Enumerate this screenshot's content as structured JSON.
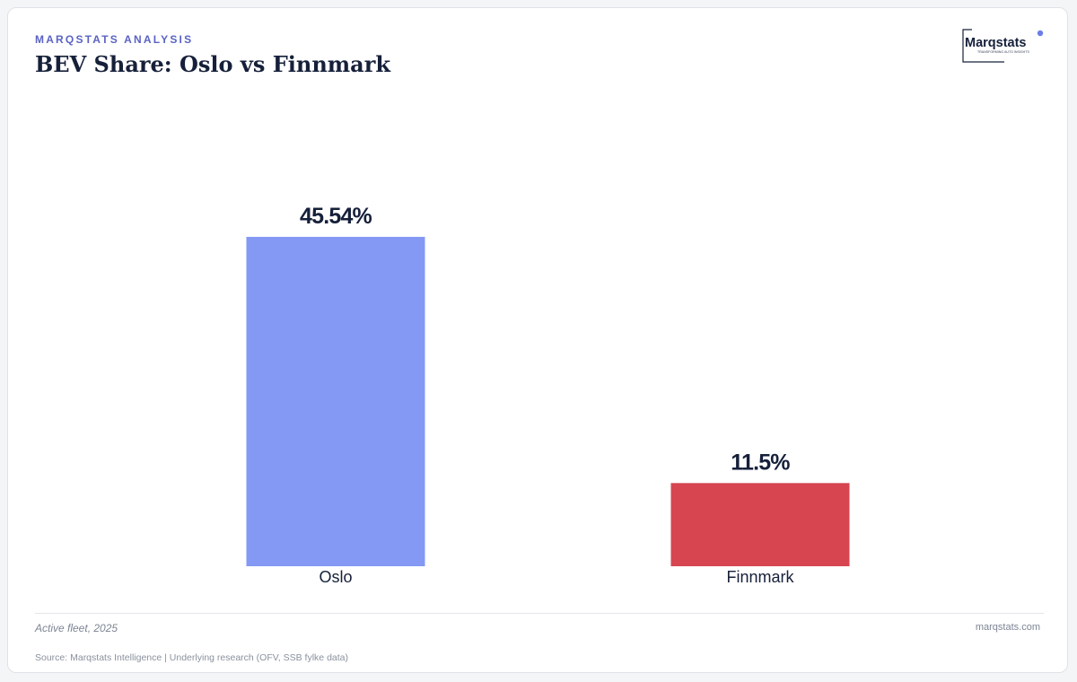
{
  "header": {
    "eyebrow": "MARQSTATS ANALYSIS",
    "title": "BEV Share: Oslo vs Finnmark"
  },
  "logo": {
    "name": "Marqstats",
    "tagline": "TRANSFORMING AUTO INSIGHTS"
  },
  "chart_data": {
    "type": "bar",
    "title": "BEV Share: Oslo vs Finnmark",
    "categories": [
      "Oslo",
      "Finnmark"
    ],
    "values": [
      45.54,
      11.5
    ],
    "value_labels": [
      "45.54%",
      "11.5%"
    ],
    "colors": [
      "#8399f4",
      "#d64550"
    ],
    "ylim": [
      0,
      50
    ],
    "xlabel": "",
    "ylabel": "",
    "grid": false,
    "legend": "none"
  },
  "footer": {
    "note": "Active fleet, 2025",
    "site": "marqstats.com",
    "source": "Source: Marqstats Intelligence | Underlying research (OFV, SSB fylke data)"
  }
}
